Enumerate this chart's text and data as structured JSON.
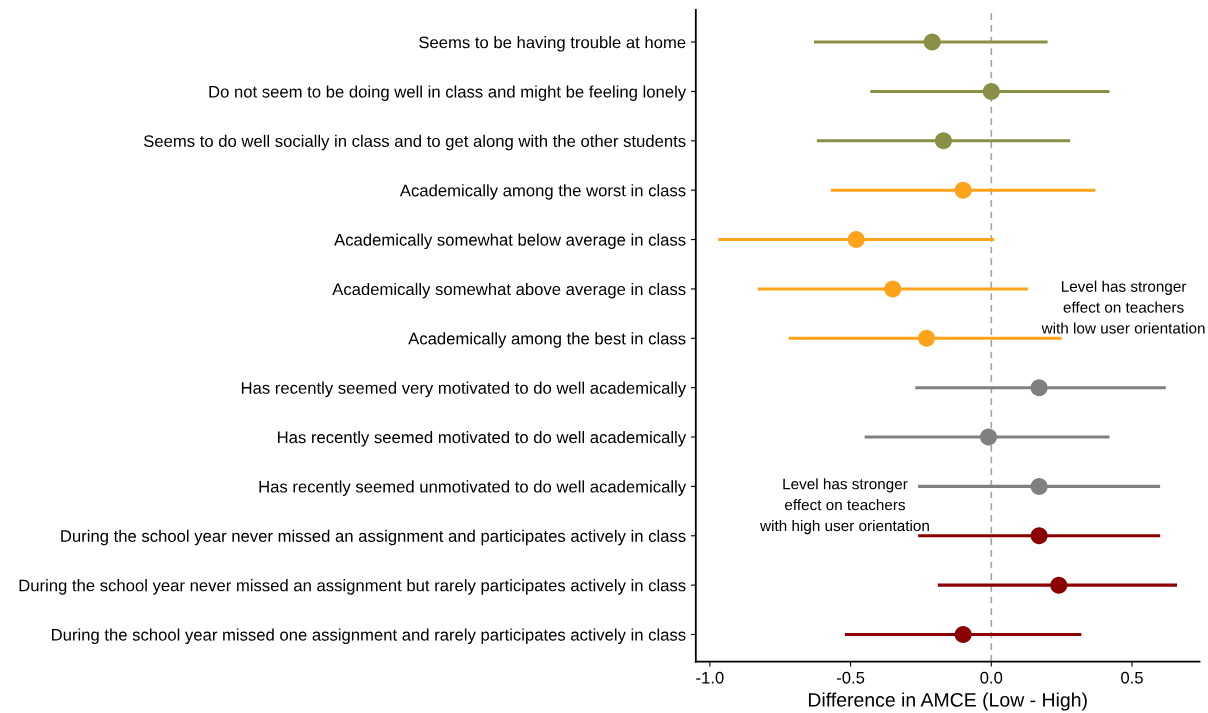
{
  "chart_data": {
    "type": "scatter",
    "orientation": "horizontal",
    "xlabel": "Difference in AMCE (Low - High)",
    "categories": [
      "Seems to be having trouble at home",
      "Do not seem to be doing well in class and might be feeling lonely",
      "Seems to do well socially in class and to get along with the other students",
      "Academically among the worst in class",
      "Academically somewhat below average in class",
      "Academically somewhat above average in class",
      "Academically among the best in class",
      "Has recently seemed very motivated to do well academically",
      "Has recently seemed motivated to do well academically",
      "Has recently seemed unmotivated to do well academically",
      "During the school year never missed an assignment and participates actively in class",
      "During the school year never missed an assignment but rarely participates actively in class",
      "During the school year missed one assignment and rarely participates actively in class"
    ],
    "values": [
      -0.21,
      0.0,
      -0.17,
      -0.1,
      -0.48,
      -0.35,
      -0.23,
      0.17,
      -0.01,
      0.17,
      0.17,
      0.24,
      -0.1
    ],
    "errors": [
      [
        -0.63,
        0.2
      ],
      [
        -0.43,
        0.42
      ],
      [
        -0.62,
        0.28
      ],
      [
        -0.57,
        0.37
      ],
      [
        -0.97,
        0.01
      ],
      [
        -0.83,
        0.13
      ],
      [
        -0.72,
        0.25
      ],
      [
        -0.27,
        0.62
      ],
      [
        -0.45,
        0.42
      ],
      [
        -0.26,
        0.6
      ],
      [
        -0.26,
        0.6
      ],
      [
        -0.19,
        0.66
      ],
      [
        -0.52,
        0.32
      ]
    ],
    "colors": [
      "#8a8f45",
      "#8a8f45",
      "#8a8f45",
      "#ffa31a",
      "#ffa31a",
      "#ffa31a",
      "#ffa31a",
      "#808080",
      "#808080",
      "#808080",
      "#8b0000",
      "#8b0000",
      "#8b0000"
    ],
    "marker": "circle",
    "xlim": [
      -1.05,
      0.74
    ],
    "xticks": [
      {
        "value": -1.0,
        "label": "-1.0"
      },
      {
        "value": -0.5,
        "label": "-0.5"
      },
      {
        "value": 0.0,
        "label": "0.0"
      },
      {
        "value": 0.5,
        "label": "0.5"
      }
    ],
    "ref_lines": [
      {
        "axis": "x",
        "value": 0,
        "color": "#a6a6a6",
        "line_style": "dashed"
      }
    ],
    "annotations": [
      "Level has stronger\neffect on teachers\nwith low user orientation",
      "Level has stronger\neffect on teachers\nwith high user orientation"
    ],
    "grid": false
  }
}
